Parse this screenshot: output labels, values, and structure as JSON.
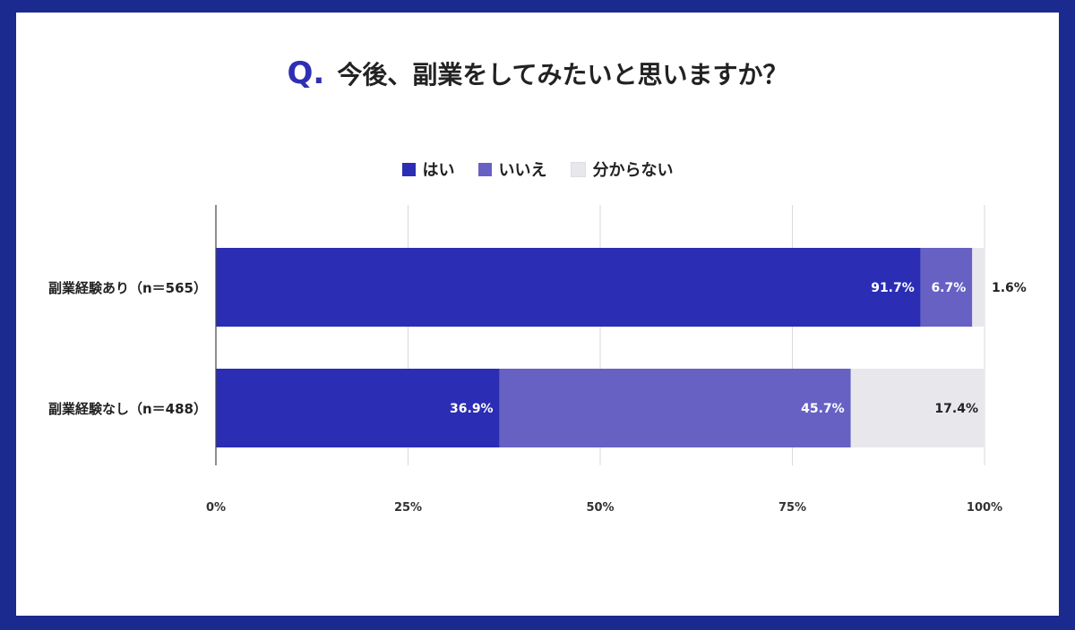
{
  "title": {
    "prefix": "Q.",
    "text": "今後、副業をしてみたいと思いますか？"
  },
  "legend": [
    {
      "label": "はい",
      "color": "#2b2db4"
    },
    {
      "label": "いいえ",
      "color": "#6761c4"
    },
    {
      "label": "分からない",
      "color": "#e8e8ec"
    }
  ],
  "chart_data": {
    "type": "bar",
    "orientation": "horizontal",
    "stacked": true,
    "categories": [
      "副業経験あり（n＝565）",
      "副業経験なし（n＝488）"
    ],
    "series": [
      {
        "name": "はい",
        "values": [
          91.7,
          36.9
        ],
        "color": "#2b2db4"
      },
      {
        "name": "いいえ",
        "values": [
          6.7,
          45.7
        ],
        "color": "#6761c4"
      },
      {
        "name": "分からない",
        "values": [
          1.6,
          17.4
        ],
        "color": "#e8e8ec"
      }
    ],
    "data_labels": [
      [
        "91.7%",
        "6.7%",
        "1.6%"
      ],
      [
        "36.9%",
        "45.7%",
        "17.4%"
      ]
    ],
    "xticks": [
      "0%",
      "25%",
      "50%",
      "75%",
      "100%"
    ],
    "xlim": [
      0,
      100
    ],
    "grid": true,
    "legend_position": "top-center"
  }
}
